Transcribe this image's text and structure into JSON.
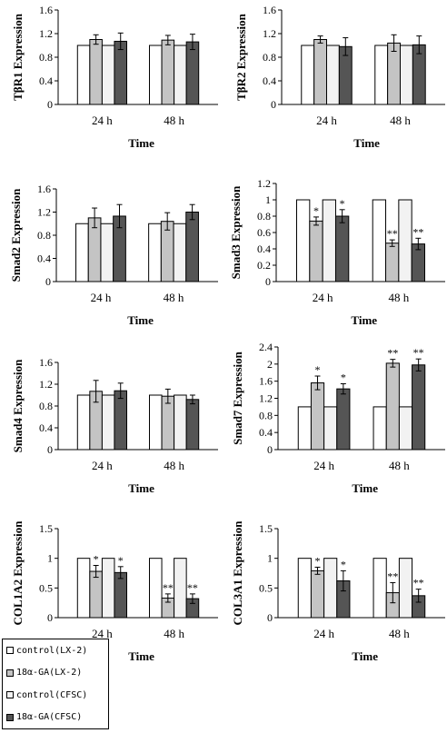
{
  "colors": {
    "control_lx2": "#ffffff",
    "ga_lx2": "#c4c4c4",
    "control_cfsc": "#f2f2f2",
    "ga_cfsc": "#555555"
  },
  "legend": {
    "items": [
      {
        "label": "control(LX-2)",
        "color": "#ffffff"
      },
      {
        "label": "18α-GA(LX-2)",
        "color": "#c4c4c4"
      },
      {
        "label": "control(CFSC)",
        "color": "#f2f2f2"
      },
      {
        "label": "18α-GA(CFSC)",
        "color": "#555555"
      }
    ]
  },
  "chart_data": [
    {
      "type": "bar",
      "ylabel": "TβR1 Expression",
      "xlabel": "Time",
      "categories": [
        "24 h",
        "48 h"
      ],
      "ylim": [
        0,
        1.6
      ],
      "yticks": [
        "0",
        "0.4",
        "0.8",
        "1.2",
        "1.6"
      ],
      "series": [
        {
          "name": "control(LX-2)",
          "values": [
            1.0,
            1.0
          ],
          "errors": [
            0,
            0
          ]
        },
        {
          "name": "18α-GA(LX-2)",
          "values": [
            1.1,
            1.09
          ],
          "errors": [
            0.08,
            0.08
          ]
        },
        {
          "name": "control(CFSC)",
          "values": [
            1.0,
            1.0
          ],
          "errors": [
            0,
            0
          ]
        },
        {
          "name": "18α-GA(CFSC)",
          "values": [
            1.07,
            1.06
          ],
          "errors": [
            0.14,
            0.13
          ]
        }
      ],
      "significance": [
        [
          "",
          "",
          "",
          ""
        ],
        [
          "",
          "",
          "",
          ""
        ]
      ]
    },
    {
      "type": "bar",
      "ylabel": "TβR2 Expression",
      "xlabel": "Time",
      "categories": [
        "24 h",
        "48 h"
      ],
      "ylim": [
        0,
        1.6
      ],
      "yticks": [
        "0",
        "0.4",
        "0.8",
        "1.2",
        "1.6"
      ],
      "series": [
        {
          "name": "control(LX-2)",
          "values": [
            1.0,
            1.0
          ],
          "errors": [
            0,
            0
          ]
        },
        {
          "name": "18α-GA(LX-2)",
          "values": [
            1.1,
            1.04
          ],
          "errors": [
            0.06,
            0.14
          ]
        },
        {
          "name": "control(CFSC)",
          "values": [
            1.0,
            1.0
          ],
          "errors": [
            0,
            0
          ]
        },
        {
          "name": "18α-GA(CFSC)",
          "values": [
            0.98,
            1.01
          ],
          "errors": [
            0.15,
            0.15
          ]
        }
      ],
      "significance": [
        [
          "",
          "",
          "",
          ""
        ],
        [
          "",
          "",
          "",
          ""
        ]
      ]
    },
    {
      "type": "bar",
      "ylabel": "Smad2 Expression",
      "xlabel": "Time",
      "categories": [
        "24 h",
        "48 h"
      ],
      "ylim": [
        0,
        1.6
      ],
      "yticks": [
        "0",
        "0.4",
        "0.8",
        "1.2",
        "1.6"
      ],
      "series": [
        {
          "name": "control(LX-2)",
          "values": [
            1.0,
            1.0
          ],
          "errors": [
            0,
            0
          ]
        },
        {
          "name": "18α-GA(LX-2)",
          "values": [
            1.1,
            1.04
          ],
          "errors": [
            0.17,
            0.15
          ]
        },
        {
          "name": "control(CFSC)",
          "values": [
            1.0,
            1.0
          ],
          "errors": [
            0,
            0
          ]
        },
        {
          "name": "18α-GA(CFSC)",
          "values": [
            1.13,
            1.2
          ],
          "errors": [
            0.2,
            0.13
          ]
        }
      ],
      "significance": [
        [
          "",
          "",
          "",
          ""
        ],
        [
          "",
          "",
          "",
          ""
        ]
      ]
    },
    {
      "type": "bar",
      "ylabel": "Smad3 Expression",
      "xlabel": "Time",
      "categories": [
        "24 h",
        "48 h"
      ],
      "ylim": [
        0,
        1.2
      ],
      "yticks": [
        "0",
        "0.2",
        "0.4",
        "0.6",
        "0.8",
        "1",
        "1.2"
      ],
      "series": [
        {
          "name": "control(LX-2)",
          "values": [
            1.0,
            1.0
          ],
          "errors": [
            0,
            0
          ]
        },
        {
          "name": "18α-GA(LX-2)",
          "values": [
            0.74,
            0.47
          ],
          "errors": [
            0.05,
            0.04
          ]
        },
        {
          "name": "control(CFSC)",
          "values": [
            1.0,
            1.0
          ],
          "errors": [
            0,
            0
          ]
        },
        {
          "name": "18α-GA(CFSC)",
          "values": [
            0.8,
            0.46
          ],
          "errors": [
            0.08,
            0.07
          ]
        }
      ],
      "significance": [
        [
          "",
          "*",
          "",
          "*"
        ],
        [
          "",
          "**",
          "",
          "**"
        ]
      ]
    },
    {
      "type": "bar",
      "ylabel": "Smad4 Expression",
      "xlabel": "Time",
      "categories": [
        "24 h",
        "48 h"
      ],
      "ylim": [
        0,
        1.6
      ],
      "yticks": [
        "0",
        "0.4",
        "0.8",
        "1.2",
        "1.6"
      ],
      "series": [
        {
          "name": "control(LX-2)",
          "values": [
            1.0,
            1.0
          ],
          "errors": [
            0,
            0
          ]
        },
        {
          "name": "18α-GA(LX-2)",
          "values": [
            1.07,
            0.98
          ],
          "errors": [
            0.2,
            0.13
          ]
        },
        {
          "name": "control(CFSC)",
          "values": [
            1.0,
            1.0
          ],
          "errors": [
            0,
            0
          ]
        },
        {
          "name": "18α-GA(CFSC)",
          "values": [
            1.08,
            0.92
          ],
          "errors": [
            0.14,
            0.08
          ]
        }
      ],
      "significance": [
        [
          "",
          "",
          "",
          ""
        ],
        [
          "",
          "",
          "",
          ""
        ]
      ]
    },
    {
      "type": "bar",
      "ylabel": "Smad7 Expression",
      "xlabel": "Time",
      "categories": [
        "24 h",
        "48 h"
      ],
      "ylim": [
        0,
        2.4
      ],
      "yticks": [
        "0",
        "0.4",
        "0.8",
        "1.2",
        "1.6",
        "2",
        "2.4"
      ],
      "series": [
        {
          "name": "control(LX-2)",
          "values": [
            1.0,
            1.0
          ],
          "errors": [
            0,
            0
          ]
        },
        {
          "name": "18α-GA(LX-2)",
          "values": [
            1.56,
            2.02
          ],
          "errors": [
            0.16,
            0.09
          ]
        },
        {
          "name": "control(CFSC)",
          "values": [
            1.0,
            1.0
          ],
          "errors": [
            0,
            0
          ]
        },
        {
          "name": "18α-GA(CFSC)",
          "values": [
            1.42,
            1.98
          ],
          "errors": [
            0.12,
            0.14
          ]
        }
      ],
      "significance": [
        [
          "",
          "*",
          "",
          "*"
        ],
        [
          "",
          "**",
          "",
          "**"
        ]
      ]
    },
    {
      "type": "bar",
      "ylabel": "COL1A2 Expression",
      "xlabel": "Time",
      "categories": [
        "24 h",
        "48 h"
      ],
      "ylim": [
        0,
        1.5
      ],
      "yticks": [
        "0",
        "0.5",
        "1",
        "1.5"
      ],
      "series": [
        {
          "name": "control(LX-2)",
          "values": [
            1.0,
            1.0
          ],
          "errors": [
            0,
            0
          ]
        },
        {
          "name": "18α-GA(LX-2)",
          "values": [
            0.78,
            0.33
          ],
          "errors": [
            0.1,
            0.07
          ]
        },
        {
          "name": "control(CFSC)",
          "values": [
            1.0,
            1.0
          ],
          "errors": [
            0,
            0
          ]
        },
        {
          "name": "18α-GA(CFSC)",
          "values": [
            0.76,
            0.32
          ],
          "errors": [
            0.1,
            0.08
          ]
        }
      ],
      "significance": [
        [
          "",
          "*",
          "",
          "*"
        ],
        [
          "",
          "**",
          "",
          "**"
        ]
      ]
    },
    {
      "type": "bar",
      "ylabel": "COL3A1 Expression",
      "xlabel": "Time",
      "categories": [
        "24 h",
        "48 h"
      ],
      "ylim": [
        0,
        1.5
      ],
      "yticks": [
        "0",
        "0.5",
        "1",
        "1.5"
      ],
      "series": [
        {
          "name": "control(LX-2)",
          "values": [
            1.0,
            1.0
          ],
          "errors": [
            0,
            0
          ]
        },
        {
          "name": "18α-GA(LX-2)",
          "values": [
            0.79,
            0.42
          ],
          "errors": [
            0.06,
            0.17
          ]
        },
        {
          "name": "control(CFSC)",
          "values": [
            1.0,
            1.0
          ],
          "errors": [
            0,
            0
          ]
        },
        {
          "name": "18α-GA(CFSC)",
          "values": [
            0.62,
            0.37
          ],
          "errors": [
            0.17,
            0.11
          ]
        }
      ],
      "significance": [
        [
          "",
          "*",
          "",
          "*"
        ],
        [
          "",
          "**",
          "",
          "**"
        ]
      ]
    }
  ]
}
